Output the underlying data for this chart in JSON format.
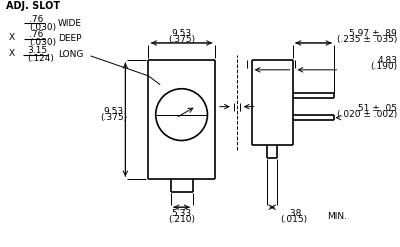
{
  "bg_color": "#ffffff",
  "line_color": "#000000",
  "text_color": "#000000",
  "figsize": [
    4.0,
    2.47
  ],
  "dpi": 100,
  "annotations": {
    "adj_slot": "ADJ. SLOT",
    "wide_top": ".76",
    "wide_top_paren": "(.030)",
    "wide_label": "WIDE",
    "deep_top": ".76",
    "deep_top_paren": "(.030)",
    "deep_label": "DEEP",
    "long_top": "3.15",
    "long_top_paren": "(.124)",
    "long_label": "LONG",
    "dim_9_53_top": "9.53",
    "dim_9_53_paren": "(.375)",
    "dim_9_53_v_top": "9.53",
    "dim_9_53_v_paren": "(.375)",
    "dim_5_33_top": "5.33",
    "dim_5_33_paren": "(.210)",
    "dim_5_97_top": "5.97 ± .89",
    "dim_5_97_paren": "(.235 ± .035)",
    "dim_4_83_top": "4.83",
    "dim_4_83_paren": "(.190)",
    "dim_51_top": ".51 ± .05",
    "dim_51_paren": "(.020 ± .002)",
    "dim_38_top": ".38",
    "dim_38_paren": "(.015)",
    "min_label": "MIN."
  }
}
